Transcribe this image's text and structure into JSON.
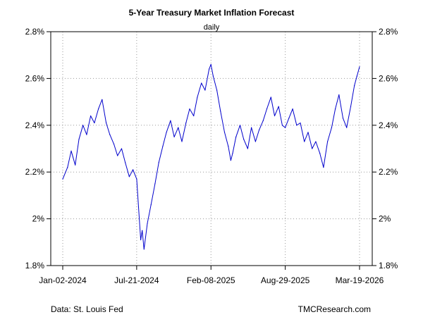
{
  "chart_data": {
    "type": "line",
    "title": "5-Year Treasury Market Inflation Forecast",
    "subtitle": "daily",
    "xlabel": "",
    "ylabel": "",
    "x_ticks": [
      "Jan-02-2024",
      "Jul-21-2024",
      "Feb-08-2025",
      "Aug-29-2025",
      "Mar-19-2026"
    ],
    "x_range": [
      "2024-01-02",
      "2026-03-19"
    ],
    "y_ticks": [
      "1.8%",
      "2%",
      "2.2%",
      "2.4%",
      "2.6%",
      "2.8%"
    ],
    "ylim": [
      1.8,
      2.8
    ],
    "y_axis_sides": "both",
    "grid": true,
    "line_color": "#0000cc",
    "series": [
      {
        "x": [
          "2024-01-02",
          "2024-01-15",
          "2024-01-25",
          "2024-02-05",
          "2024-02-15",
          "2024-02-26",
          "2024-03-07",
          "2024-03-18",
          "2024-03-28",
          "2024-04-08",
          "2024-04-18",
          "2024-04-29",
          "2024-05-09",
          "2024-05-20",
          "2024-05-30",
          "2024-06-10",
          "2024-06-20",
          "2024-07-01",
          "2024-07-11",
          "2024-07-21",
          "2024-07-26",
          "2024-08-01",
          "2024-08-05",
          "2024-08-10",
          "2024-08-19",
          "2024-08-29",
          "2024-09-09",
          "2024-09-19",
          "2024-09-30",
          "2024-10-10",
          "2024-10-21",
          "2024-10-31",
          "2024-11-11",
          "2024-11-21",
          "2024-12-02",
          "2024-12-12",
          "2024-12-23",
          "2025-01-02",
          "2025-01-13",
          "2025-01-23",
          "2025-02-03",
          "2025-02-08",
          "2025-02-14",
          "2025-02-24",
          "2025-03-06",
          "2025-03-17",
          "2025-03-27",
          "2025-04-03",
          "2025-04-08",
          "2025-04-17",
          "2025-04-28",
          "2025-05-08",
          "2025-05-19",
          "2025-05-29",
          "2025-06-09",
          "2025-06-19",
          "2025-06-30",
          "2025-07-10",
          "2025-07-21",
          "2025-07-31",
          "2025-08-11",
          "2025-08-21",
          "2025-08-29",
          "2025-09-08",
          "2025-09-18",
          "2025-09-29",
          "2025-10-09",
          "2025-10-20",
          "2025-10-30",
          "2025-11-10",
          "2025-11-20",
          "2025-12-01",
          "2025-12-11",
          "2025-12-22",
          "2026-01-02",
          "2026-01-12",
          "2026-01-22",
          "2026-02-02",
          "2026-02-12",
          "2026-02-23",
          "2026-03-05",
          "2026-03-12",
          "2026-03-19"
        ],
        "values": [
          2.17,
          2.22,
          2.29,
          2.23,
          2.34,
          2.4,
          2.36,
          2.44,
          2.41,
          2.47,
          2.51,
          2.41,
          2.36,
          2.32,
          2.27,
          2.3,
          2.24,
          2.18,
          2.21,
          2.17,
          2.05,
          1.91,
          1.95,
          1.87,
          1.98,
          2.06,
          2.15,
          2.24,
          2.31,
          2.37,
          2.42,
          2.35,
          2.39,
          2.33,
          2.41,
          2.47,
          2.44,
          2.52,
          2.58,
          2.55,
          2.64,
          2.66,
          2.61,
          2.55,
          2.46,
          2.37,
          2.31,
          2.25,
          2.28,
          2.35,
          2.4,
          2.34,
          2.3,
          2.39,
          2.33,
          2.38,
          2.42,
          2.47,
          2.52,
          2.44,
          2.48,
          2.4,
          2.39,
          2.43,
          2.47,
          2.4,
          2.41,
          2.33,
          2.37,
          2.3,
          2.33,
          2.28,
          2.22,
          2.33,
          2.39,
          2.47,
          2.53,
          2.43,
          2.39,
          2.48,
          2.57,
          2.61,
          2.65
        ]
      }
    ]
  },
  "footer": {
    "source": "Data: St. Louis Fed",
    "site": "TMCResearch.com"
  }
}
